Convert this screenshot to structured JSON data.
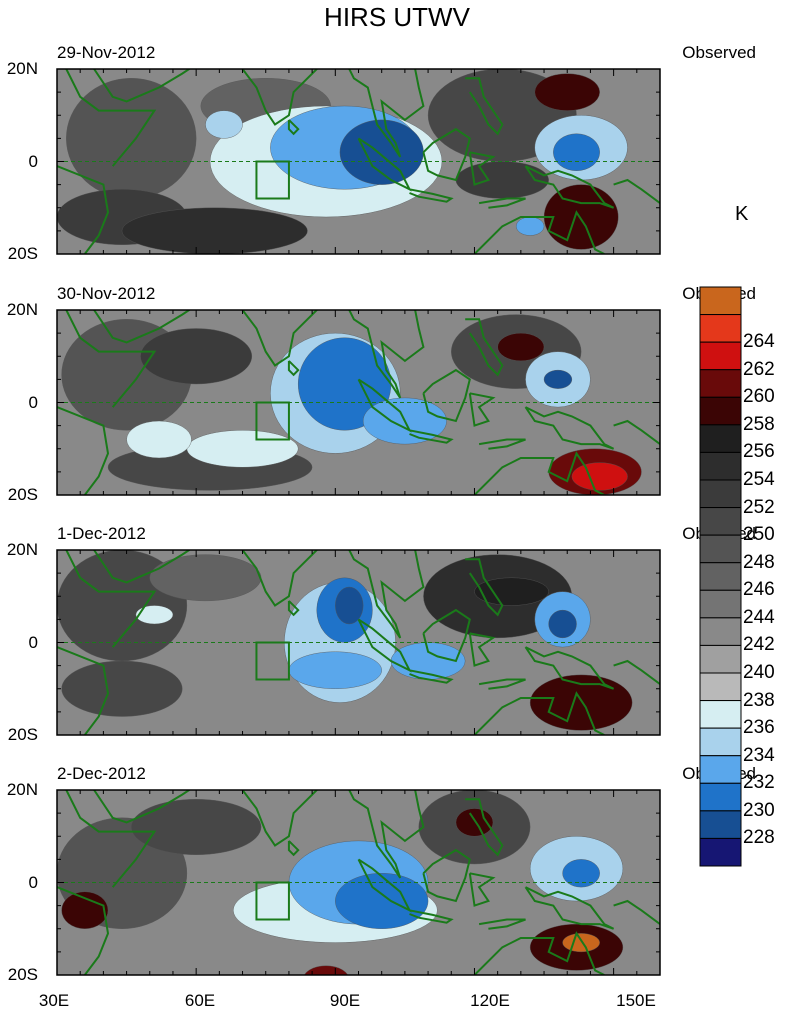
{
  "title": "HIRS UTWV",
  "unit": "K",
  "chart_data": {
    "type": "heatmap",
    "title": "HIRS UTWV",
    "colorbar_label": "K",
    "colorbar_levels": [
      228,
      230,
      232,
      234,
      236,
      238,
      240,
      242,
      244,
      246,
      248,
      250,
      252,
      254,
      256,
      258,
      260,
      262,
      264
    ],
    "colorbar_colors": [
      "#161673",
      "#174f93",
      "#1f73c9",
      "#5aa7eb",
      "#a9d2ec",
      "#d6eef2",
      "#b9b9b9",
      "#a0a0a0",
      "#898989",
      "#747474",
      "#626262",
      "#545454",
      "#474747",
      "#3b3b3b",
      "#2d2d2d",
      "#1f1f1f",
      "#3b0505",
      "#690a0a",
      "#cf1010",
      "#e4381b",
      "#c9661d"
    ],
    "x_ticks": [
      "30E",
      "60E",
      "90E",
      "120E",
      "150E"
    ],
    "x_tick_values": [
      30,
      60,
      90,
      120,
      150
    ],
    "y_ticks": [
      "20N",
      "0",
      "20S"
    ],
    "y_tick_values": [
      20,
      0,
      -20
    ],
    "xlim": [
      30,
      160
    ],
    "ylim": [
      -20,
      20
    ],
    "box_region": {
      "lon": [
        73,
        80
      ],
      "lat": [
        -8,
        0
      ]
    },
    "panels": [
      {
        "date": "29-Nov-2012",
        "tag": "Observed",
        "features": [
          {
            "lon": 46,
            "lat": 5,
            "rx": 14,
            "ry": 13,
            "value": 249
          },
          {
            "lon": 44,
            "lat": -12,
            "rx": 14,
            "ry": 6,
            "value": 253
          },
          {
            "lon": 64,
            "lat": -15,
            "rx": 20,
            "ry": 5,
            "value": 254
          },
          {
            "lon": 75,
            "lat": 12,
            "rx": 14,
            "ry": 6,
            "value": 246
          },
          {
            "lon": 126,
            "lat": 10,
            "rx": 16,
            "ry": 10,
            "value": 251
          },
          {
            "lon": 140,
            "lat": 15,
            "rx": 7,
            "ry": 4,
            "value": 259
          },
          {
            "lon": 143,
            "lat": -12,
            "rx": 8,
            "ry": 7,
            "value": 259
          },
          {
            "lon": 126,
            "lat": -4,
            "rx": 10,
            "ry": 4,
            "value": 252
          },
          {
            "lon": 88,
            "lat": 0,
            "rx": 25,
            "ry": 12,
            "value": 237
          },
          {
            "lon": 92,
            "lat": 3,
            "rx": 16,
            "ry": 9,
            "value": 233
          },
          {
            "lon": 100,
            "lat": 2,
            "rx": 9,
            "ry": 7,
            "value": 229
          },
          {
            "lon": 66,
            "lat": 8,
            "rx": 4,
            "ry": 3,
            "value": 234
          },
          {
            "lon": 143,
            "lat": 3,
            "rx": 10,
            "ry": 7,
            "value": 235
          },
          {
            "lon": 142,
            "lat": 2,
            "rx": 5,
            "ry": 4,
            "value": 231
          },
          {
            "lon": 132,
            "lat": -14,
            "rx": 3,
            "ry": 2,
            "value": 232
          }
        ]
      },
      {
        "date": "30-Nov-2012",
        "tag": "Observed",
        "features": [
          {
            "lon": 45,
            "lat": 6,
            "rx": 14,
            "ry": 12,
            "value": 249
          },
          {
            "lon": 60,
            "lat": 10,
            "rx": 12,
            "ry": 6,
            "value": 252
          },
          {
            "lon": 63,
            "lat": -14,
            "rx": 22,
            "ry": 5,
            "value": 251
          },
          {
            "lon": 129,
            "lat": 11,
            "rx": 14,
            "ry": 8,
            "value": 251
          },
          {
            "lon": 130,
            "lat": 12,
            "rx": 5,
            "ry": 3,
            "value": 258
          },
          {
            "lon": 146,
            "lat": -15,
            "rx": 10,
            "ry": 5,
            "value": 260
          },
          {
            "lon": 147,
            "lat": -16,
            "rx": 6,
            "ry": 3,
            "value": 263
          },
          {
            "lon": 90,
            "lat": 2,
            "rx": 14,
            "ry": 13,
            "value": 235
          },
          {
            "lon": 92,
            "lat": 4,
            "rx": 10,
            "ry": 10,
            "value": 231
          },
          {
            "lon": 105,
            "lat": -4,
            "rx": 9,
            "ry": 5,
            "value": 233
          },
          {
            "lon": 70,
            "lat": -10,
            "rx": 12,
            "ry": 4,
            "value": 237
          },
          {
            "lon": 52,
            "lat": -8,
            "rx": 7,
            "ry": 4,
            "value": 237
          },
          {
            "lon": 138,
            "lat": 5,
            "rx": 7,
            "ry": 6,
            "value": 235
          },
          {
            "lon": 138,
            "lat": 5,
            "rx": 3,
            "ry": 2,
            "value": 229
          }
        ]
      },
      {
        "date": "1-Dec-2012",
        "tag": "Observed",
        "features": [
          {
            "lon": 44,
            "lat": 8,
            "rx": 14,
            "ry": 12,
            "value": 251
          },
          {
            "lon": 44,
            "lat": -10,
            "rx": 13,
            "ry": 6,
            "value": 251
          },
          {
            "lon": 62,
            "lat": 14,
            "rx": 12,
            "ry": 5,
            "value": 246
          },
          {
            "lon": 125,
            "lat": 10,
            "rx": 16,
            "ry": 9,
            "value": 254
          },
          {
            "lon": 128,
            "lat": 11,
            "rx": 8,
            "ry": 3,
            "value": 257
          },
          {
            "lon": 143,
            "lat": -13,
            "rx": 11,
            "ry": 6,
            "value": 258
          },
          {
            "lon": 91,
            "lat": 0,
            "rx": 12,
            "ry": 13,
            "value": 235
          },
          {
            "lon": 92,
            "lat": 7,
            "rx": 6,
            "ry": 7,
            "value": 230
          },
          {
            "lon": 93,
            "lat": 8,
            "rx": 3,
            "ry": 4,
            "value": 228
          },
          {
            "lon": 90,
            "lat": -6,
            "rx": 10,
            "ry": 4,
            "value": 232
          },
          {
            "lon": 110,
            "lat": -4,
            "rx": 8,
            "ry": 4,
            "value": 233
          },
          {
            "lon": 51,
            "lat": 6,
            "rx": 4,
            "ry": 2,
            "value": 237
          },
          {
            "lon": 139,
            "lat": 5,
            "rx": 6,
            "ry": 6,
            "value": 233
          },
          {
            "lon": 139,
            "lat": 4,
            "rx": 3,
            "ry": 3,
            "value": 228
          }
        ]
      },
      {
        "date": "2-Dec-2012",
        "tag": "Observed",
        "features": [
          {
            "lon": 44,
            "lat": 2,
            "rx": 14,
            "ry": 12,
            "value": 249
          },
          {
            "lon": 36,
            "lat": -6,
            "rx": 5,
            "ry": 4,
            "value": 258
          },
          {
            "lon": 60,
            "lat": 12,
            "rx": 14,
            "ry": 6,
            "value": 251
          },
          {
            "lon": 120,
            "lat": 12,
            "rx": 12,
            "ry": 8,
            "value": 251
          },
          {
            "lon": 120,
            "lat": 13,
            "rx": 4,
            "ry": 3,
            "value": 258
          },
          {
            "lon": 142,
            "lat": -14,
            "rx": 10,
            "ry": 5,
            "value": 259
          },
          {
            "lon": 143,
            "lat": -13,
            "rx": 4,
            "ry": 2,
            "value": 264
          },
          {
            "lon": 88,
            "lat": -21,
            "rx": 5,
            "ry": 3,
            "value": 260
          },
          {
            "lon": 90,
            "lat": -6,
            "rx": 22,
            "ry": 7,
            "value": 237
          },
          {
            "lon": 95,
            "lat": 0,
            "rx": 15,
            "ry": 9,
            "value": 233
          },
          {
            "lon": 100,
            "lat": -4,
            "rx": 10,
            "ry": 6,
            "value": 230
          },
          {
            "lon": 142,
            "lat": 3,
            "rx": 10,
            "ry": 7,
            "value": 234
          },
          {
            "lon": 143,
            "lat": 2,
            "rx": 4,
            "ry": 3,
            "value": 231
          }
        ]
      }
    ]
  }
}
